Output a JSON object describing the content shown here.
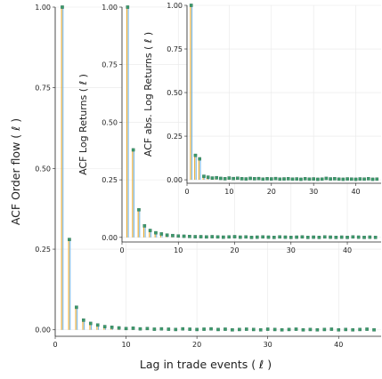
{
  "colors": {
    "stem_line": "#e6a930",
    "stem_line_2": "#78b8e6",
    "marker": "#3c9a6b",
    "marker_edge": "#2f6f55",
    "axis": "#222222",
    "grid": "#e8e8e8",
    "background": "#ffffff"
  },
  "chart_data": [
    {
      "id": "order_flow",
      "type": "stem",
      "ylabel": "ACF Order flow ( ℓ )",
      "xlabel": "Lag in trade events ( ℓ )",
      "xlim": [
        0,
        46
      ],
      "ylim": [
        -0.02,
        1.0
      ],
      "xticks": [
        "0",
        "10",
        "20",
        "30",
        "40"
      ],
      "yticks": [
        "0.00",
        "0.25",
        "0.50",
        "0.75",
        "1.00"
      ],
      "x": [
        1,
        2,
        3,
        4,
        5,
        6,
        7,
        8,
        9,
        10,
        11,
        12,
        13,
        14,
        15,
        16,
        17,
        18,
        19,
        20,
        21,
        22,
        23,
        24,
        25,
        26,
        27,
        28,
        29,
        30,
        31,
        32,
        33,
        34,
        35,
        36,
        37,
        38,
        39,
        40,
        41,
        42,
        43,
        44,
        45
      ],
      "values": [
        1.0,
        0.28,
        0.07,
        0.03,
        0.02,
        0.015,
        0.01,
        0.008,
        0.006,
        0.004,
        0.005,
        0.003,
        0.004,
        0.002,
        0.003,
        0.002,
        0.001,
        0.003,
        0.002,
        0.001,
        0.002,
        0.003,
        0.001,
        0.002,
        0.0,
        0.001,
        0.002,
        0.001,
        0.0,
        0.002,
        0.001,
        0.0,
        0.001,
        0.002,
        0.0,
        0.001,
        0.0,
        0.001,
        0.002,
        0.0,
        0.001,
        0.0,
        0.001,
        0.002,
        0.0
      ]
    },
    {
      "id": "log_returns",
      "type": "stem",
      "ylabel": "ACF Log Returns ( ℓ )",
      "xlim": [
        0,
        46
      ],
      "ylim": [
        -0.02,
        1.0
      ],
      "xticks": [
        "0",
        "10",
        "20",
        "30",
        "40"
      ],
      "yticks": [
        "0.00",
        "0.25",
        "0.50",
        "0.75",
        "1.00"
      ],
      "x": [
        1,
        2,
        3,
        4,
        5,
        6,
        7,
        8,
        9,
        10,
        11,
        12,
        13,
        14,
        15,
        16,
        17,
        18,
        19,
        20,
        21,
        22,
        23,
        24,
        25,
        26,
        27,
        28,
        29,
        30,
        31,
        32,
        33,
        34,
        35,
        36,
        37,
        38,
        39,
        40,
        41,
        42,
        43,
        44,
        45
      ],
      "values": [
        1.0,
        0.38,
        0.12,
        0.05,
        0.03,
        0.02,
        0.015,
        0.01,
        0.008,
        0.006,
        0.005,
        0.004,
        0.003,
        0.003,
        0.002,
        0.003,
        0.002,
        0.001,
        0.002,
        0.003,
        0.001,
        0.002,
        0.0,
        0.001,
        0.002,
        0.001,
        0.0,
        0.002,
        0.001,
        0.0,
        0.001,
        0.002,
        0.0,
        0.001,
        0.0,
        0.002,
        0.001,
        0.0,
        0.001,
        0.0,
        0.002,
        0.001,
        0.0,
        0.001,
        0.0
      ]
    },
    {
      "id": "abs_log_returns",
      "type": "stem",
      "ylabel": "ACF abs. Log Returns ( ℓ )",
      "xlim": [
        0,
        46
      ],
      "ylim": [
        -0.02,
        1.0
      ],
      "xticks": [
        "0",
        "10",
        "20",
        "30",
        "40"
      ],
      "yticks": [
        "0.00",
        "0.25",
        "0.50",
        "0.75",
        "1.00"
      ],
      "x": [
        1,
        2,
        3,
        4,
        5,
        6,
        7,
        8,
        9,
        10,
        11,
        12,
        13,
        14,
        15,
        16,
        17,
        18,
        19,
        20,
        21,
        22,
        23,
        24,
        25,
        26,
        27,
        28,
        29,
        30,
        31,
        32,
        33,
        34,
        35,
        36,
        37,
        38,
        39,
        40,
        41,
        42,
        43,
        44,
        45
      ],
      "values": [
        1.0,
        0.14,
        0.12,
        0.02,
        0.015,
        0.01,
        0.012,
        0.008,
        0.006,
        0.01,
        0.007,
        0.009,
        0.006,
        0.005,
        0.008,
        0.006,
        0.007,
        0.004,
        0.006,
        0.005,
        0.007,
        0.004,
        0.005,
        0.006,
        0.004,
        0.005,
        0.003,
        0.006,
        0.004,
        0.005,
        0.003,
        0.004,
        0.008,
        0.005,
        0.006,
        0.004,
        0.003,
        0.005,
        0.004,
        0.003,
        0.005,
        0.004,
        0.006,
        0.003,
        0.004
      ]
    }
  ]
}
